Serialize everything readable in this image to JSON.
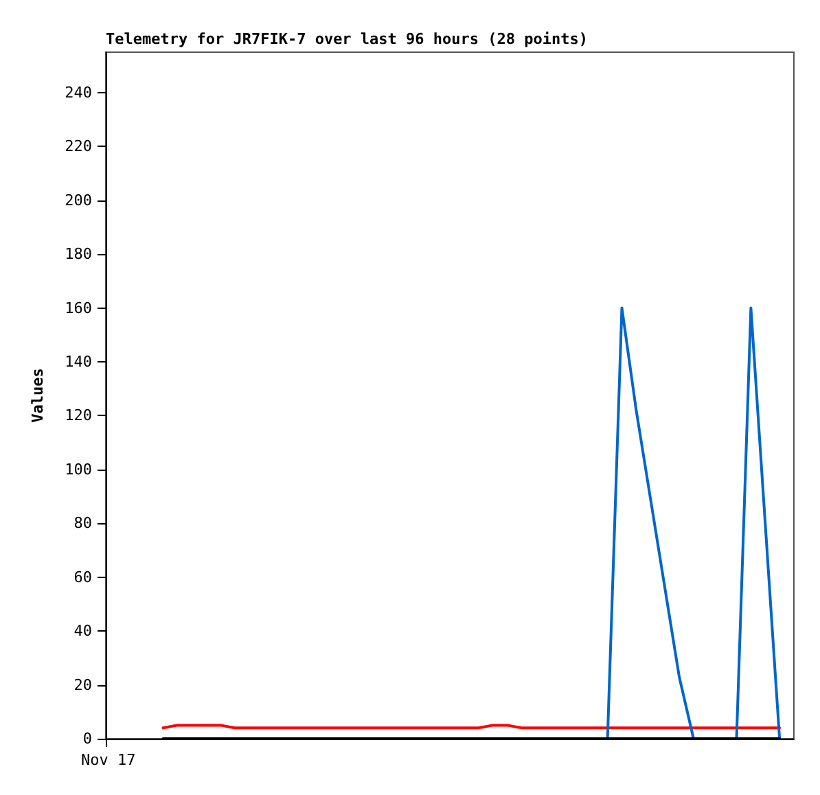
{
  "chart_data": {
    "type": "line",
    "title": "Telemetry for JR7FIK-7 over last 96 hours (28 points)",
    "ylabel": "Values",
    "annotations": [
      "Nov 17"
    ],
    "categories": [
      null,
      null,
      null,
      null,
      null,
      null,
      null,
      null,
      null,
      null,
      null,
      null,
      null,
      null,
      null,
      null,
      null,
      null,
      null,
      null,
      null,
      null,
      null,
      null,
      null,
      null,
      null,
      null,
      null,
      null,
      null,
      null,
      null,
      null,
      null,
      null,
      null,
      null,
      null,
      null,
      null,
      null,
      null,
      null,
      null,
      null,
      null,
      null,
      null
    ],
    "ylim": [
      0,
      255
    ],
    "yticks": [
      0,
      20,
      40,
      60,
      80,
      100,
      120,
      140,
      160,
      180,
      200,
      220,
      240
    ],
    "grid": false,
    "marker": "none",
    "line_style": "solid",
    "series": [
      {
        "color": "#ff0000",
        "values": [
          null,
          null,
          null,
          null,
          4,
          5,
          5,
          5,
          5,
          4,
          4,
          4,
          4,
          4,
          4,
          4,
          4,
          4,
          4,
          4,
          4,
          4,
          4,
          4,
          4,
          4,
          4,
          5,
          5,
          4,
          4,
          4,
          4,
          4,
          4,
          4,
          4,
          4,
          4,
          4,
          4,
          4,
          4,
          4,
          4,
          4,
          4,
          4,
          null
        ]
      },
      {
        "color": "#0066cc",
        "values": [
          null,
          null,
          null,
          null,
          null,
          null,
          null,
          null,
          null,
          null,
          null,
          null,
          null,
          null,
          null,
          null,
          null,
          null,
          null,
          null,
          null,
          null,
          null,
          null,
          null,
          null,
          null,
          null,
          null,
          null,
          null,
          null,
          null,
          null,
          null,
          0,
          160,
          122,
          89,
          56,
          23,
          0,
          0,
          0,
          0,
          160,
          80,
          0,
          null
        ]
      },
      {
        "color": "#000000",
        "values": [
          null,
          null,
          null,
          null,
          0,
          0,
          0,
          0,
          0,
          0,
          0,
          0,
          0,
          0,
          0,
          0,
          0,
          0,
          0,
          0,
          0,
          0,
          0,
          0,
          0,
          0,
          0,
          0,
          0,
          0,
          0,
          0,
          0,
          0,
          0,
          0,
          0,
          0,
          0,
          0,
          0,
          0,
          0,
          0,
          0,
          0,
          0,
          0,
          null
        ]
      }
    ]
  }
}
